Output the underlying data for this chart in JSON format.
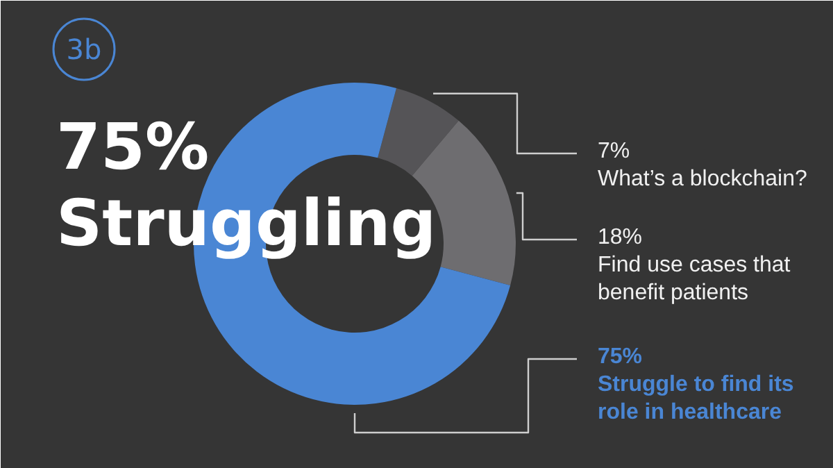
{
  "chart_data": {
    "type": "donut",
    "title": "75% Struggling",
    "annotations": [
      "3b"
    ],
    "categories": [
      "What’s a blockchain?",
      "Find use cases that benefit patients",
      "Struggle to find its role in healthcare"
    ],
    "values": [
      7,
      18,
      75
    ],
    "value_labels": [
      "7%",
      "18%",
      "75%"
    ],
    "colors": [
      "#555457",
      "#6e6d70",
      "#4a86d4"
    ]
  }
}
